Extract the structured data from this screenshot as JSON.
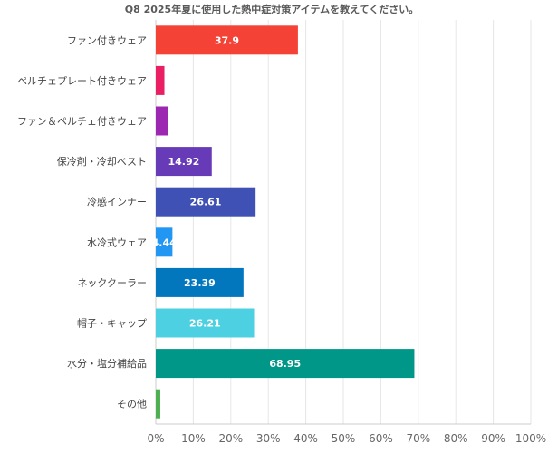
{
  "chart_data": {
    "type": "bar",
    "orientation": "horizontal",
    "title": "Q8 2025年夏に使用した熱中症対策アイテムを教えてください。",
    "xlabel": "",
    "ylabel": "",
    "xlim": [
      0,
      100
    ],
    "x_tick_format": "percent",
    "x_ticks": [
      "0%",
      "10%",
      "20%",
      "30%",
      "40%",
      "50%",
      "60%",
      "70%",
      "80%",
      "90%",
      "100%"
    ],
    "grid": true,
    "categories": [
      "ファン付きウェア",
      "ペルチェプレート付きウェア",
      "ファン＆ペルチェ付きウェア",
      "保冷剤・冷却ベスト",
      "冷感インナー",
      "水冷式ウェア",
      "ネッククーラー",
      "帽子・キャップ",
      "水分・塩分補給品",
      "その他"
    ],
    "values": [
      37.9,
      2.3,
      3.2,
      14.92,
      26.61,
      4.44,
      23.39,
      26.21,
      68.95,
      1.2
    ],
    "data_labels": [
      "37.9",
      "",
      "",
      "14.92",
      "26.61",
      "4.44",
      "23.39",
      "26.21",
      "68.95",
      ""
    ],
    "colors": [
      "#f44336",
      "#e91e63",
      "#9c27b0",
      "#673ab7",
      "#3f51b5",
      "#2196f3",
      "#0277bd",
      "#4dd0e1",
      "#009688",
      "#4caf50"
    ]
  }
}
